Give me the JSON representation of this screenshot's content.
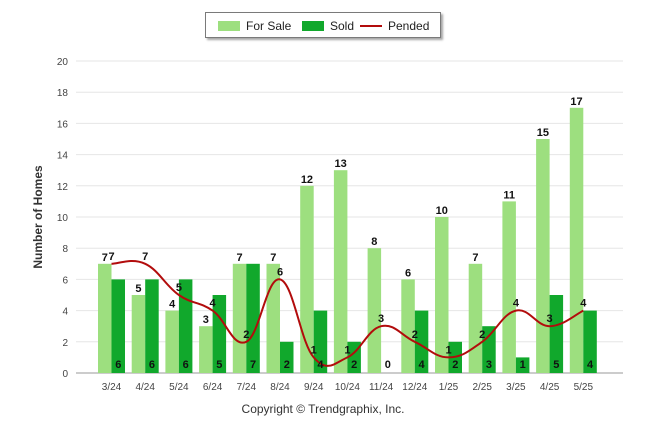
{
  "chart_data": {
    "type": "bar",
    "categories": [
      "3/24",
      "4/24",
      "5/24",
      "6/24",
      "7/24",
      "8/24",
      "9/24",
      "10/24",
      "11/24",
      "12/24",
      "1/25",
      "2/25",
      "3/25",
      "4/25",
      "5/25"
    ],
    "series": [
      {
        "name": "For Sale",
        "kind": "bar",
        "color": "#9ddf7f",
        "values": [
          7,
          5,
          4,
          3,
          7,
          7,
          12,
          13,
          8,
          6,
          10,
          7,
          11,
          15,
          17
        ]
      },
      {
        "name": "Sold",
        "kind": "bar",
        "color": "#11a82c",
        "values": [
          6,
          6,
          6,
          5,
          7,
          2,
          4,
          2,
          0,
          4,
          2,
          3,
          1,
          5,
          4
        ]
      },
      {
        "name": "Pended",
        "kind": "line",
        "color": "#b20c0c",
        "values": [
          7,
          7,
          5,
          4,
          2,
          6,
          1,
          1,
          3,
          2,
          1,
          2,
          4,
          3,
          4
        ]
      }
    ],
    "ylabel": "Number of Homes",
    "ylim": [
      0,
      20
    ],
    "yticks": [
      0,
      2,
      4,
      6,
      8,
      10,
      12,
      14,
      16,
      18,
      20
    ],
    "grid": true,
    "legend_position": "top-center"
  },
  "legend": {
    "for_sale": "For Sale",
    "sold": "Sold",
    "pended": "Pended"
  },
  "footer": {
    "copyright": "Copyright © Trendgraphix, Inc."
  }
}
